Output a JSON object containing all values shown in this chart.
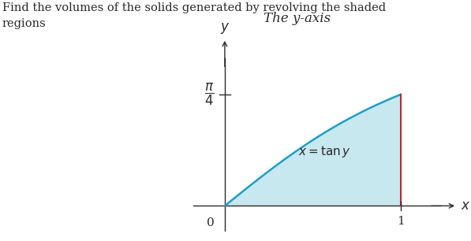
{
  "title_text": "Find the volumes of the solids generated by revolving the shaded\nregions",
  "subtitle": "The y-axis",
  "curve_label": "$x = \\tan y$",
  "shaded_color": "#c8e8f0",
  "curve_color": "#1a9fcc",
  "vertical_line_color": "#cc2222",
  "axis_color": "#2a2a2a",
  "text_color": "#2a2a2a",
  "background_color": "#ffffff",
  "xlim": [
    -0.18,
    1.32
  ],
  "ylim": [
    -0.18,
    1.18
  ],
  "pi_over_4": 0.7853981633974483,
  "figsize": [
    5.97,
    3.06
  ],
  "dpi": 100
}
